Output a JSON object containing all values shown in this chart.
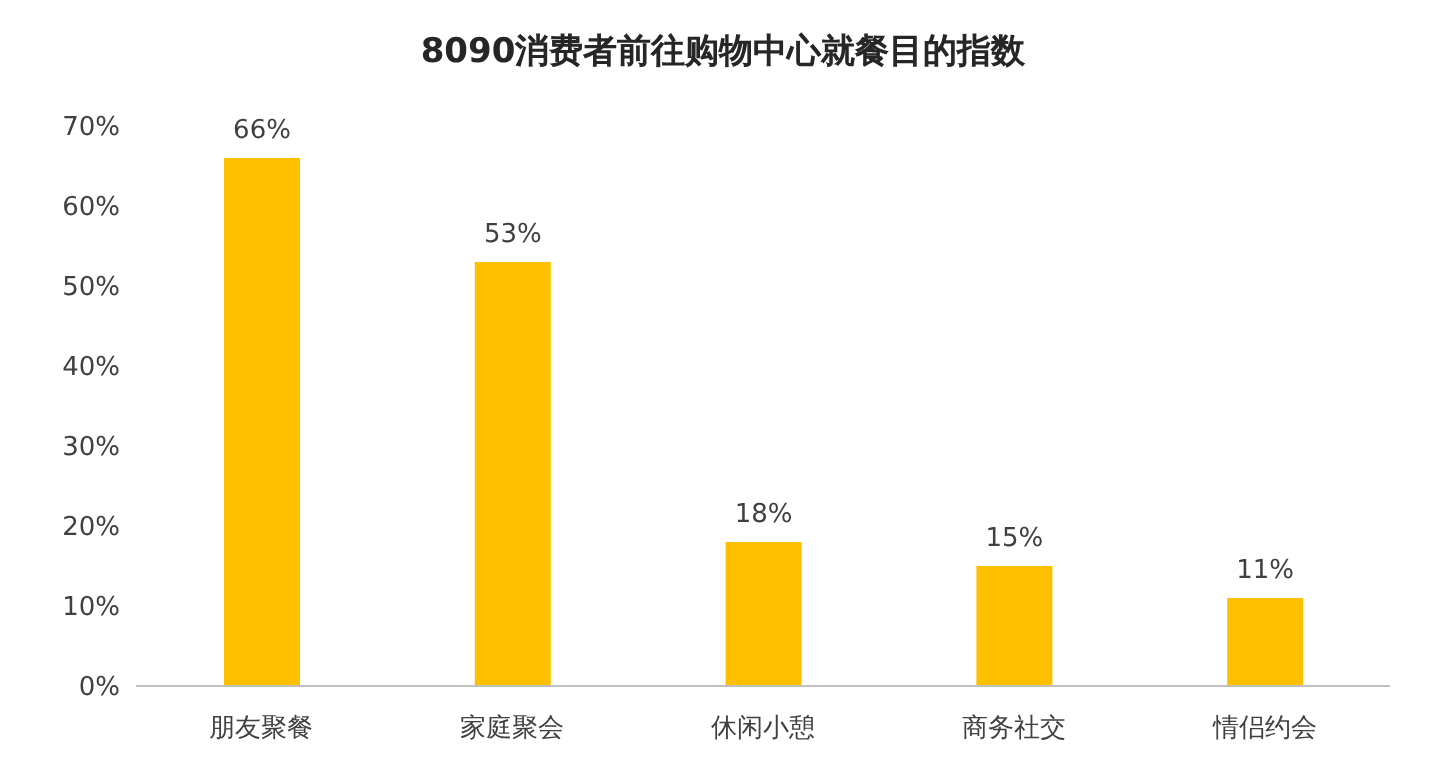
{
  "chart_data": {
    "type": "bar",
    "title": "8090消费者前往购物中心就餐目的指数",
    "categories": [
      "朋友聚餐",
      "家庭聚会",
      "休闲小憩",
      "商务社交",
      "情侣约会"
    ],
    "values": [
      66,
      53,
      18,
      15,
      11
    ],
    "color": "#ffc000",
    "value_labels": [
      "66%",
      "53%",
      "18%",
      "15%",
      "11%"
    ],
    "ylim": [
      0,
      70
    ],
    "yticks": [
      {
        "value": 0,
        "label": "0%"
      },
      {
        "value": 10,
        "label": "10%"
      },
      {
        "value": 20,
        "label": "20%"
      },
      {
        "value": 30,
        "label": "30%"
      },
      {
        "value": 40,
        "label": "40%"
      },
      {
        "value": 50,
        "label": "50%"
      },
      {
        "value": 60,
        "label": "60%"
      },
      {
        "value": 70,
        "label": "70%"
      }
    ],
    "grid": false
  }
}
